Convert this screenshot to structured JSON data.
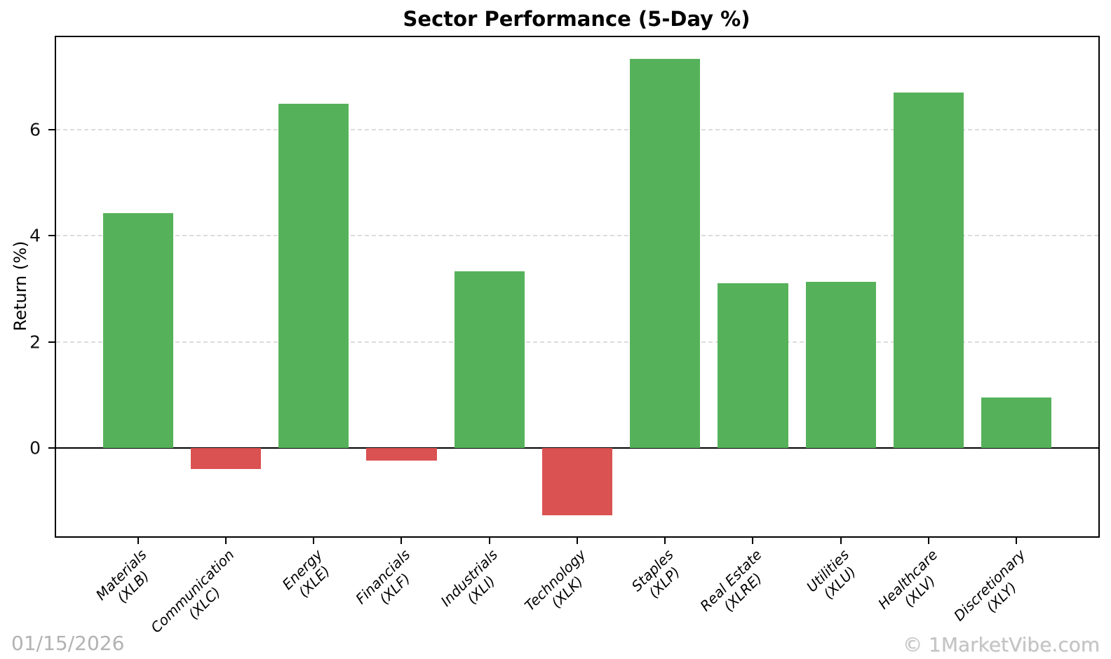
{
  "footer": {
    "date": "01/15/2026",
    "watermark": "© 1MarketVibe.com"
  },
  "chart_data": {
    "type": "bar",
    "title": "Sector Performance (5-Day %)",
    "xlabel": "",
    "ylabel": "Return (%)",
    "categories": [
      "Materials\n(XLB)",
      "Communication\n(XLC)",
      "Energy\n(XLE)",
      "Financials\n(XLF)",
      "Industrials\n(XLI)",
      "Technology\n(XLK)",
      "Staples\n(XLP)",
      "Real Estate\n(XLRE)",
      "Utilities\n(XLU)",
      "Healthcare\n(XLV)",
      "Discretionary\n(XLY)"
    ],
    "tickers": [
      "XLB",
      "XLC",
      "XLE",
      "XLF",
      "XLI",
      "XLK",
      "XLP",
      "XLRE",
      "XLU",
      "XLV",
      "XLY"
    ],
    "values": [
      4.42,
      -0.39,
      6.48,
      -0.23,
      3.33,
      -1.26,
      7.33,
      3.11,
      3.13,
      6.7,
      0.95
    ],
    "yticks": [
      0,
      2,
      4,
      6
    ],
    "ylim": [
      -1.66,
      7.74
    ],
    "grid": "horizontal dashed",
    "legend": "none",
    "positive_color": "#56B25A",
    "negative_color": "#DA5252",
    "grid_color": "#dcdcdc",
    "zero_line_color": "#000000"
  }
}
